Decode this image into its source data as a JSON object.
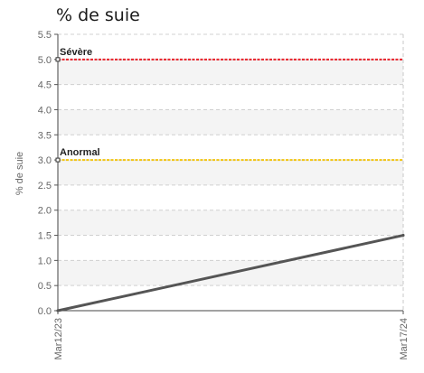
{
  "chart_data": {
    "type": "line",
    "title": "% de suie",
    "xlabel": "",
    "ylabel": "% de suie",
    "ylim": [
      0,
      5.5
    ],
    "y_ticks": [
      "0.0",
      "0.5",
      "1.0",
      "1.5",
      "2.0",
      "2.5",
      "3.0",
      "3.5",
      "4.0",
      "4.5",
      "5.0",
      "5.5"
    ],
    "x_tick_labels": [
      "Mar12/23",
      "Mar17/24"
    ],
    "grid": true,
    "series": [
      {
        "values": [
          0.0,
          1.5
        ],
        "color": "#555555"
      }
    ],
    "thresholds": [
      {
        "label": "Sévère",
        "value": 5.0,
        "color": "#e8222b"
      },
      {
        "label": "Anormal",
        "value": 3.0,
        "color": "#f2c40f"
      }
    ]
  }
}
